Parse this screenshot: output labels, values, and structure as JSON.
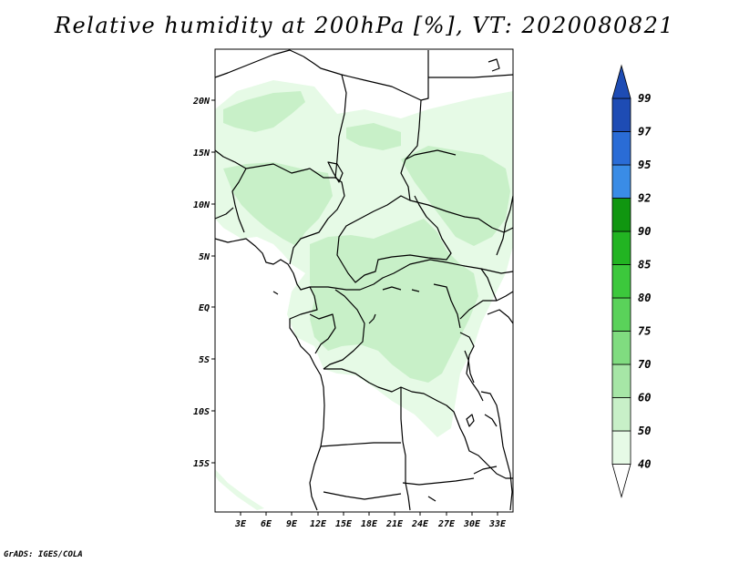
{
  "title": "Relative humidity at 200hPa [%], VT: 2020080821",
  "credit": "GrADS: IGES/COLA",
  "lat_labels": [
    "20N",
    "15N",
    "10N",
    "5N",
    "EQ",
    "5S",
    "10S",
    "15S"
  ],
  "lon_labels": [
    "3E",
    "6E",
    "9E",
    "12E",
    "15E",
    "18E",
    "21E",
    "24E",
    "27E",
    "30E",
    "33E"
  ],
  "colorbar": {
    "labels": [
      "40",
      "50",
      "60",
      "70",
      "75",
      "80",
      "85",
      "90",
      "92",
      "95",
      "97",
      "99"
    ],
    "colors": [
      "#ffffff",
      "#e6fae6",
      "#c8f0c8",
      "#a6e6a6",
      "#80dc80",
      "#5ad25a",
      "#3cc83c",
      "#22b422",
      "#109610",
      "#3a8ce6",
      "#2a6cd6",
      "#1e4cb4"
    ]
  },
  "fill_colors": {
    "light": "#e6fae6",
    "medium": "#c8f0c8"
  }
}
